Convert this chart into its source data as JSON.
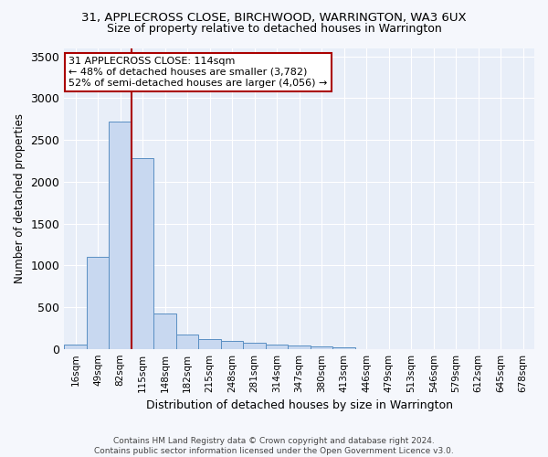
{
  "title": "31, APPLECROSS CLOSE, BIRCHWOOD, WARRINGTON, WA3 6UX",
  "subtitle": "Size of property relative to detached houses in Warrington",
  "xlabel": "Distribution of detached houses by size in Warrington",
  "ylabel": "Number of detached properties",
  "categories": [
    "16sqm",
    "49sqm",
    "82sqm",
    "115sqm",
    "148sqm",
    "182sqm",
    "215sqm",
    "248sqm",
    "281sqm",
    "314sqm",
    "347sqm",
    "380sqm",
    "413sqm",
    "446sqm",
    "479sqm",
    "513sqm",
    "546sqm",
    "579sqm",
    "612sqm",
    "645sqm",
    "678sqm"
  ],
  "values": [
    50,
    1100,
    2720,
    2280,
    420,
    175,
    120,
    90,
    70,
    55,
    40,
    30,
    20,
    0,
    0,
    0,
    0,
    0,
    0,
    0,
    0
  ],
  "bar_color": "#c8d8f0",
  "bar_edge_color": "#5a8fc3",
  "vline_color": "#aa0000",
  "vline_x": 2.5,
  "annotation_text": "31 APPLECROSS CLOSE: 114sqm\n← 48% of detached houses are smaller (3,782)\n52% of semi-detached houses are larger (4,056) →",
  "annotation_box_color": "#ffffff",
  "annotation_box_edge_color": "#aa0000",
  "ylim": [
    0,
    3600
  ],
  "yticks": [
    0,
    500,
    1000,
    1500,
    2000,
    2500,
    3000,
    3500
  ],
  "background_color": "#e8eef8",
  "grid_color": "#ffffff",
  "footer_line1": "Contains HM Land Registry data © Crown copyright and database right 2024.",
  "footer_line2": "Contains public sector information licensed under the Open Government Licence v3.0."
}
